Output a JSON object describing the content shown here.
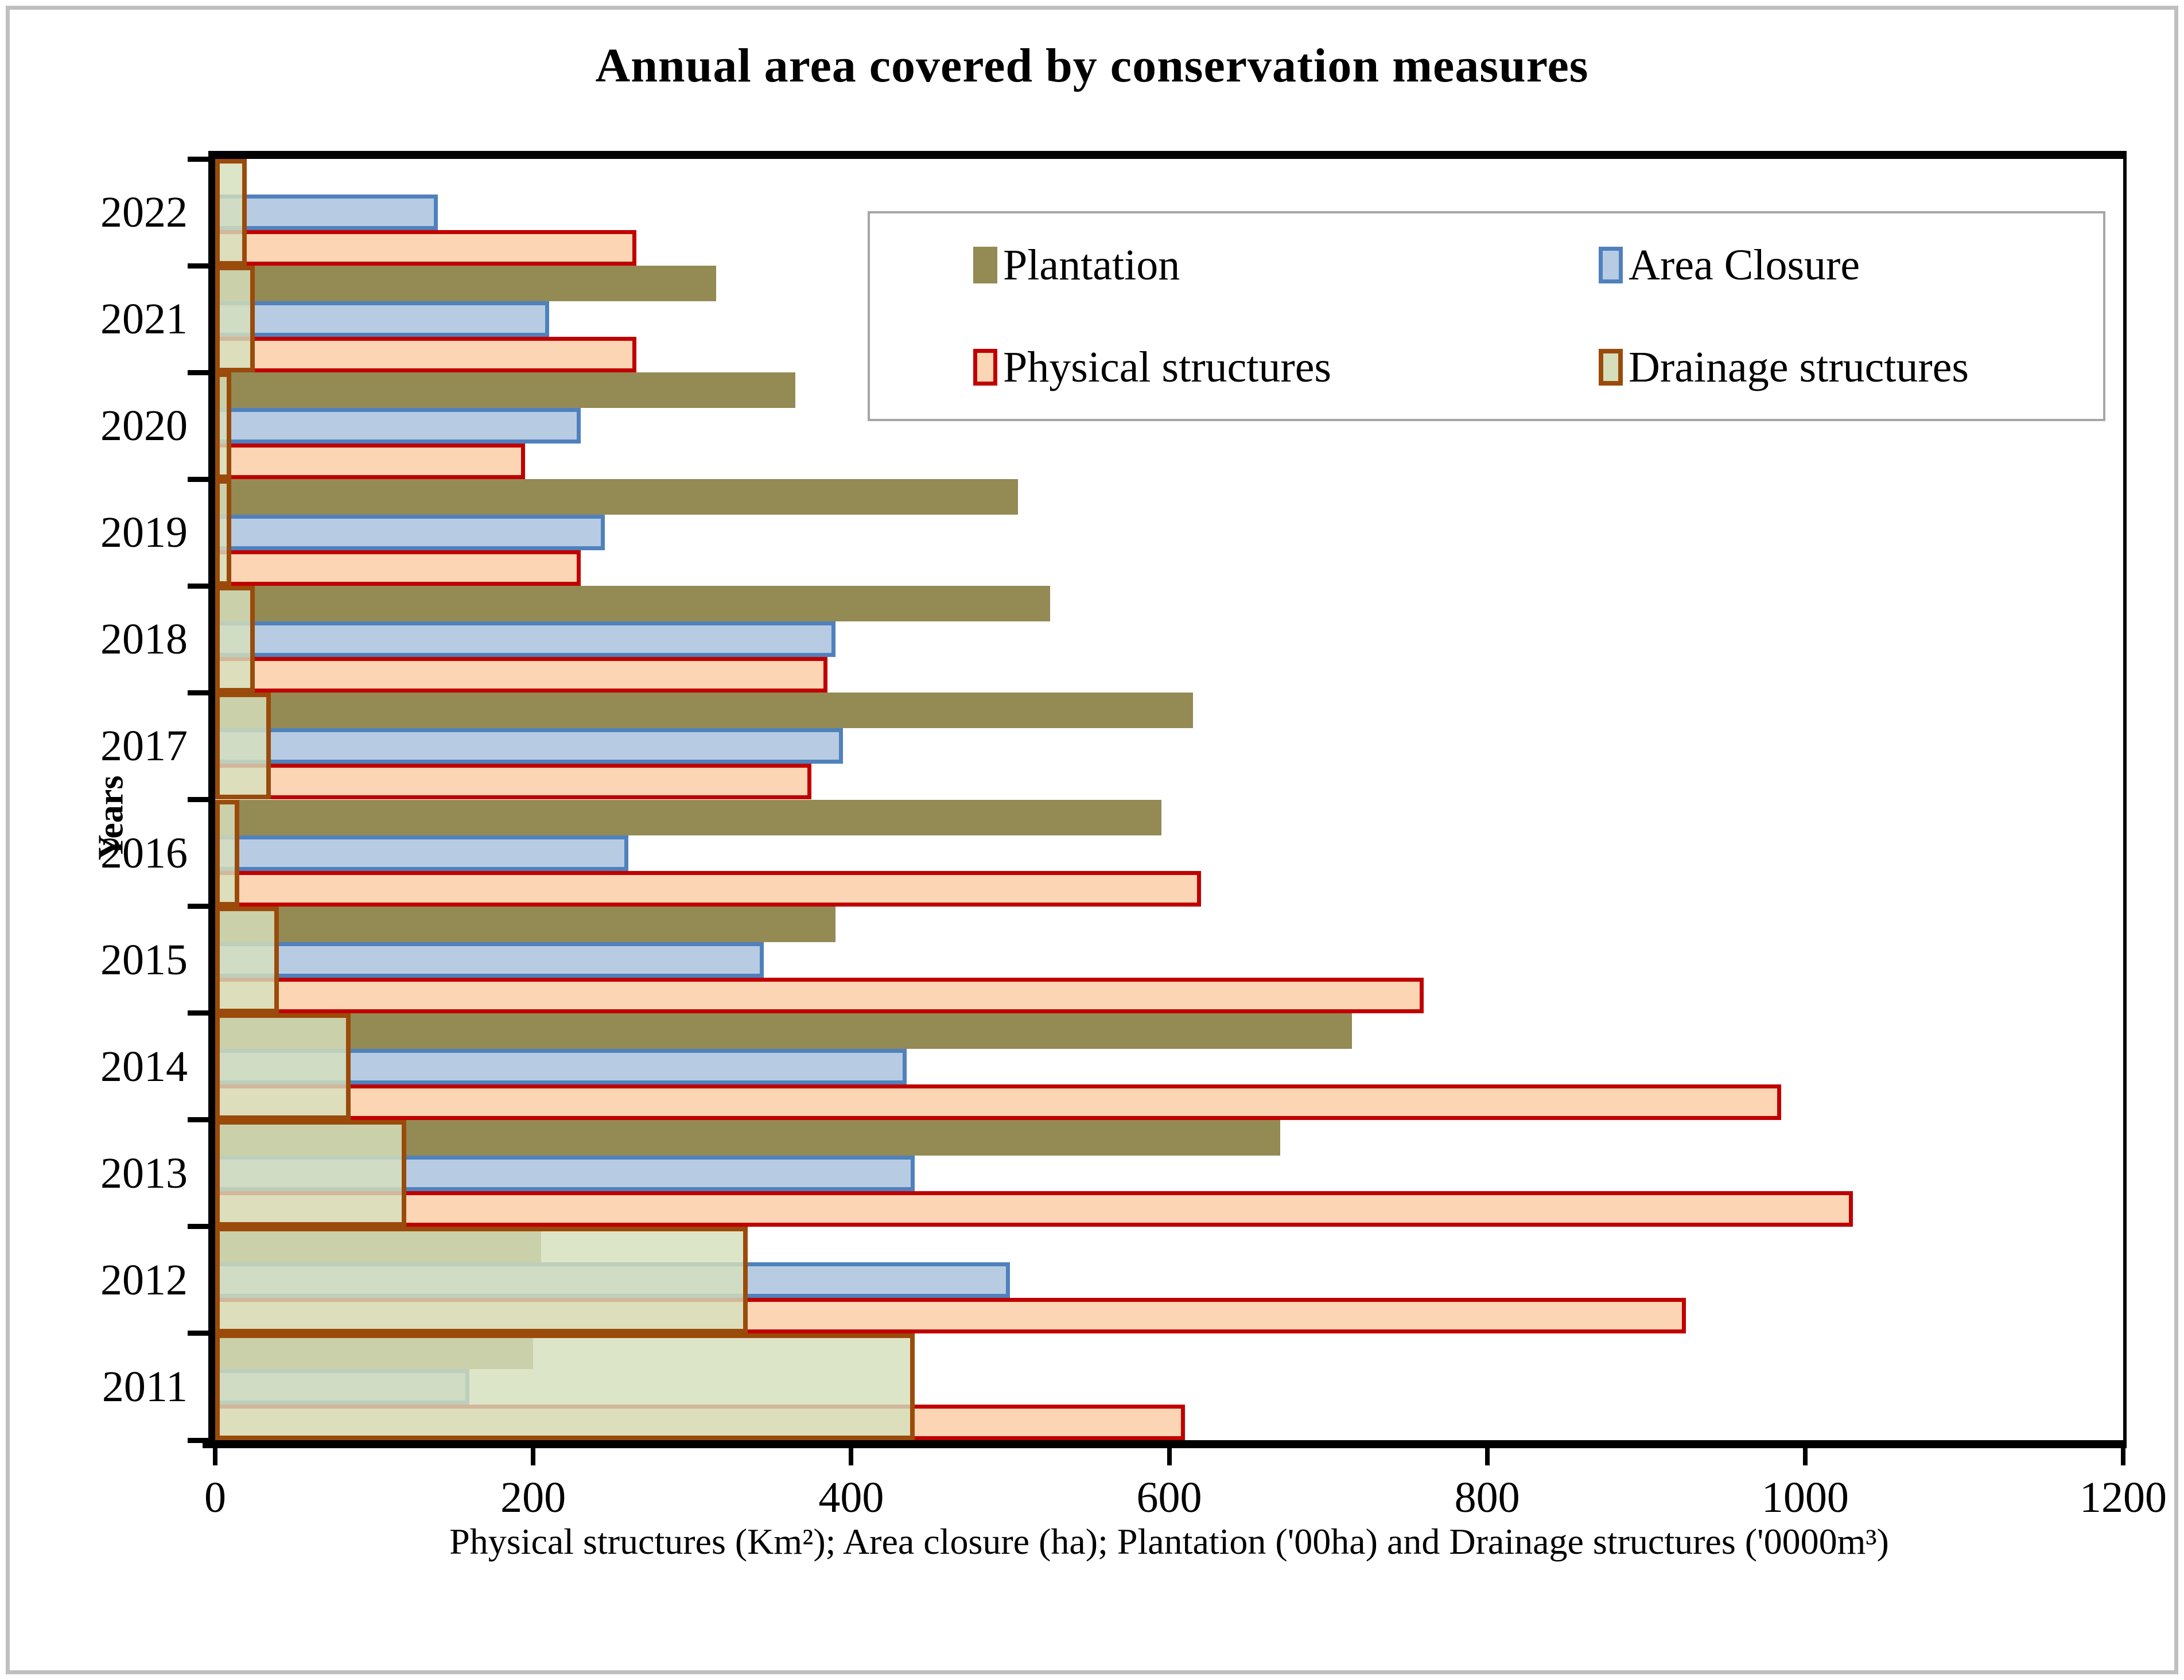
{
  "figure": {
    "title": "Annual area covered by conservation measures",
    "border_color": "#BFBFBF"
  },
  "chart_data": {
    "type": "bar",
    "orientation": "horizontal",
    "title": "Annual area covered by conservation measures",
    "xlabel": "Physical structures (Km²);  Area closure (ha); Plantation ('00ha) and Drainage structures ('0000m³)",
    "ylabel": "Years",
    "xlim": [
      0,
      1200
    ],
    "xticks": [
      "0",
      "200",
      "400",
      "600",
      "800",
      "1000",
      "1200"
    ],
    "grid": false,
    "legend_position": "inside-top-right",
    "category_axis_order": "bottom-to-top",
    "categories": [
      "2011",
      "2012",
      "2013",
      "2014",
      "2015",
      "2016",
      "2017",
      "2018",
      "2019",
      "2020",
      "2021",
      "2022"
    ],
    "series": [
      {
        "name": "Plantation",
        "fill": "#948A54",
        "border_color": "none",
        "border_width": 0,
        "values": [
          200,
          205,
          670,
          715,
          390,
          595,
          615,
          525,
          505,
          365,
          315,
          0
        ]
      },
      {
        "name": "Area Closure",
        "fill": "#B7CBE3",
        "border_color": "#4F81BD",
        "border_width": 7,
        "values": [
          160,
          500,
          440,
          435,
          345,
          260,
          395,
          390,
          245,
          230,
          210,
          140
        ]
      },
      {
        "name": "Physical structures",
        "fill": "#FCD5B4",
        "border_color": "#C00000",
        "border_width": 7,
        "values": [
          610,
          925,
          1030,
          985,
          760,
          620,
          375,
          385,
          230,
          195,
          265,
          265
        ]
      },
      {
        "name": "Drainage structures",
        "fill": "#D5DFBC",
        "fill_opacity": 0.82,
        "border_color": "#9A4B0B",
        "border_width": 8,
        "overlay_full_group": true,
        "values": [
          440,
          335,
          120,
          85,
          40,
          15,
          35,
          25,
          10,
          10,
          25,
          20
        ]
      }
    ]
  },
  "legend": {
    "entries": [
      "Plantation",
      "Area Closure",
      "Physical structures",
      "Drainage structures"
    ]
  }
}
